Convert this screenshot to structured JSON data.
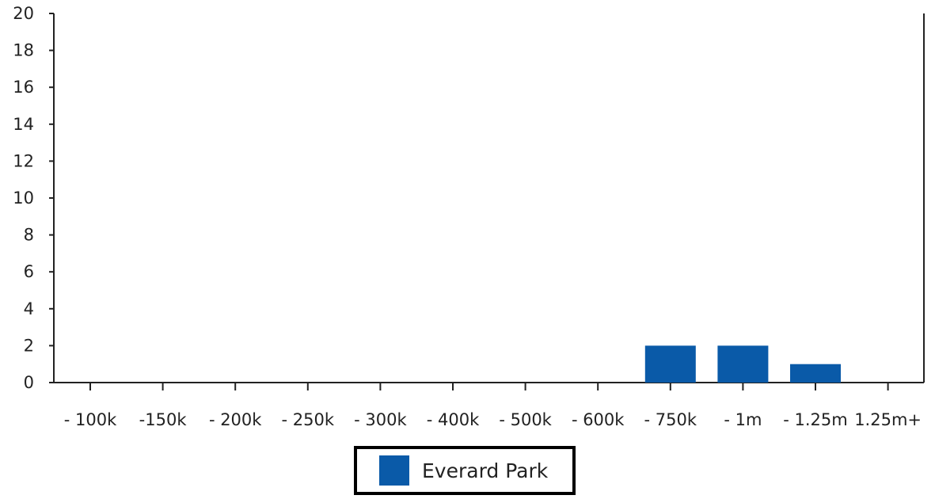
{
  "chart_data": {
    "type": "bar",
    "categories": [
      "- 100k",
      "-150k",
      "- 200k",
      "- 250k",
      "- 300k",
      "- 400k",
      "- 500k",
      "- 600k",
      "- 750k",
      "- 1m",
      "- 1.25m",
      "1.25m+"
    ],
    "series": [
      {
        "name": "Everard Park",
        "values": [
          0,
          0,
          0,
          0,
          0,
          0,
          0,
          0,
          2,
          2,
          1,
          0
        ],
        "color": "#0a5aa8"
      }
    ],
    "ylim": [
      0,
      20
    ],
    "yticks": [
      0,
      2,
      4,
      6,
      8,
      10,
      12,
      14,
      16,
      18,
      20
    ],
    "grid": false,
    "legend_position": "bottom-center"
  }
}
